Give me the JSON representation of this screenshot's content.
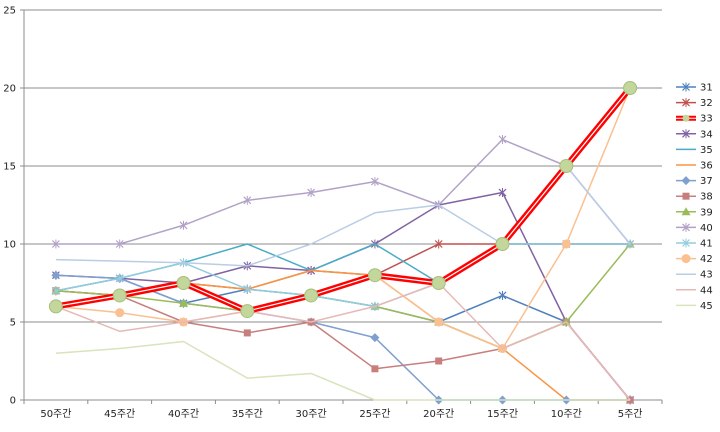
{
  "chart_data": {
    "type": "line",
    "categories": [
      "50주간",
      "45주간",
      "40주간",
      "35주간",
      "30주간",
      "25주간",
      "20주간",
      "15주간",
      "10주간",
      "5주간"
    ],
    "ylim": [
      0,
      25
    ],
    "yticks": [
      0,
      5,
      10,
      15,
      20,
      25
    ],
    "grid": true,
    "legend": "right",
    "highlight_series": "33",
    "series": [
      {
        "name": "31",
        "color": "#4f81bd",
        "marker": "x",
        "values": [
          7,
          7.8,
          6.2,
          7.1,
          6.7,
          6,
          5,
          6.7,
          5,
          0
        ]
      },
      {
        "name": "32",
        "color": "#c0504d",
        "marker": "x",
        "values": [
          7,
          6.7,
          7.5,
          7.1,
          8.3,
          8,
          10,
          10,
          10,
          10
        ]
      },
      {
        "name": "33",
        "color": "#ff0000",
        "marker": "circle",
        "values": [
          6,
          6.7,
          7.5,
          5.7,
          6.7,
          8,
          7.5,
          10,
          15,
          20
        ]
      },
      {
        "name": "34",
        "color": "#8064a2",
        "marker": "x",
        "values": [
          8,
          7.8,
          7.5,
          8.6,
          8.3,
          10,
          12.5,
          13.3,
          5,
          0
        ]
      },
      {
        "name": "35",
        "color": "#4bacc6",
        "marker": "none",
        "values": [
          7,
          7.8,
          8.8,
          10,
          8.3,
          10,
          7.5,
          10,
          10,
          10
        ]
      },
      {
        "name": "36",
        "color": "#f79646",
        "marker": "none",
        "values": [
          6,
          6.7,
          7.5,
          7.1,
          8.3,
          8,
          5,
          3.3,
          0,
          0
        ]
      },
      {
        "name": "37",
        "color": "#7f9fcf",
        "marker": "diamond",
        "values": [
          8,
          7.8,
          6.2,
          5.7,
          5,
          4,
          0,
          0,
          0,
          0
        ]
      },
      {
        "name": "38",
        "color": "#c77f7d",
        "marker": "square",
        "values": [
          7,
          6.7,
          5,
          4.3,
          5,
          2,
          2.5,
          3.3,
          5,
          0
        ]
      },
      {
        "name": "39",
        "color": "#9bbb59",
        "marker": "triangle",
        "values": [
          7,
          6.7,
          6.2,
          5.7,
          6.7,
          6,
          5,
          3.3,
          5,
          10
        ]
      },
      {
        "name": "40",
        "color": "#b3a2c7",
        "marker": "x",
        "values": [
          10,
          10,
          11.2,
          12.8,
          13.3,
          14,
          12.5,
          16.7,
          15,
          10
        ]
      },
      {
        "name": "41",
        "color": "#93cddd",
        "marker": "x",
        "values": [
          7,
          7.8,
          8.8,
          7.1,
          6.7,
          6,
          7.5,
          10,
          10,
          10
        ]
      },
      {
        "name": "42",
        "color": "#fac090",
        "marker": "circle",
        "values": [
          6,
          5.6,
          5,
          5.7,
          6.7,
          8,
          5,
          3.3,
          10,
          20
        ]
      },
      {
        "name": "43",
        "color": "#b9cde5",
        "marker": "none",
        "values": [
          9,
          8.9,
          8.8,
          8.6,
          10,
          12,
          12.5,
          10,
          15,
          10
        ]
      },
      {
        "name": "44",
        "color": "#e6b9b8",
        "marker": "none",
        "values": [
          6,
          4.4,
          5,
          5.7,
          5,
          6,
          7.5,
          3.3,
          5,
          0
        ]
      },
      {
        "name": "45",
        "color": "#d7e4bc",
        "marker": "none",
        "values": [
          3,
          3.3,
          3.75,
          1.4,
          1.7,
          0,
          0,
          0,
          0,
          0
        ]
      }
    ]
  }
}
